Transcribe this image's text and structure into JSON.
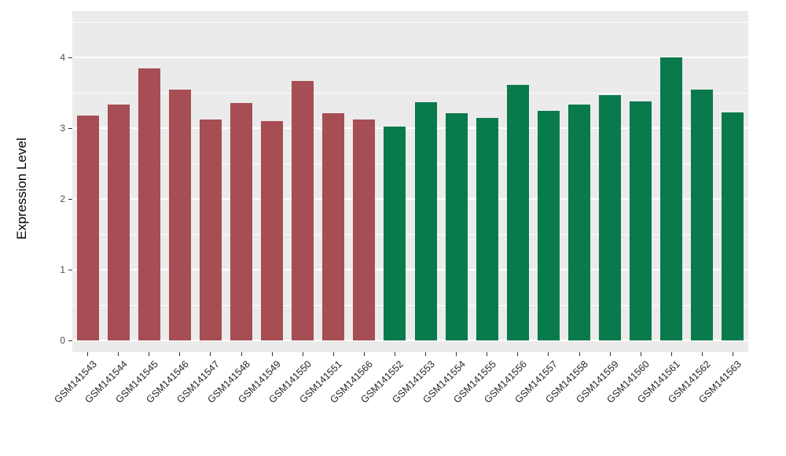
{
  "chart_data": {
    "type": "bar",
    "title": "",
    "xlabel": "",
    "ylabel": "Expression Level",
    "ylim": [
      0,
      4
    ],
    "yticks": [
      0,
      1,
      2,
      3,
      4
    ],
    "yminor": [
      0.5,
      1.5,
      2.5,
      3.5,
      4.5
    ],
    "grid": "on",
    "legend": "none",
    "panel_background": "#EBEBEB",
    "grid_color": "#FFFFFF",
    "group_colors": {
      "group_a": "#A64E53",
      "group_b": "#087A4C"
    },
    "categories": [
      "GSM141543",
      "GSM141544",
      "GSM141545",
      "GSM141546",
      "GSM141547",
      "GSM141548",
      "GSM141549",
      "GSM141550",
      "GSM141551",
      "GSM141566",
      "GSM141552",
      "GSM141553",
      "GSM141554",
      "GSM141555",
      "GSM141556",
      "GSM141557",
      "GSM141558",
      "GSM141559",
      "GSM141560",
      "GSM141561",
      "GSM141562",
      "GSM141563"
    ],
    "values": [
      3.18,
      3.33,
      3.84,
      3.55,
      3.12,
      3.36,
      3.1,
      3.67,
      3.21,
      3.12,
      3.02,
      3.37,
      3.21,
      3.15,
      3.61,
      3.24,
      3.33,
      3.47,
      3.38,
      4.0,
      3.54,
      3.22
    ],
    "groups": [
      "group_a",
      "group_a",
      "group_a",
      "group_a",
      "group_a",
      "group_a",
      "group_a",
      "group_a",
      "group_a",
      "group_a",
      "group_b",
      "group_b",
      "group_b",
      "group_b",
      "group_b",
      "group_b",
      "group_b",
      "group_b",
      "group_b",
      "group_b",
      "group_b",
      "group_b"
    ]
  }
}
